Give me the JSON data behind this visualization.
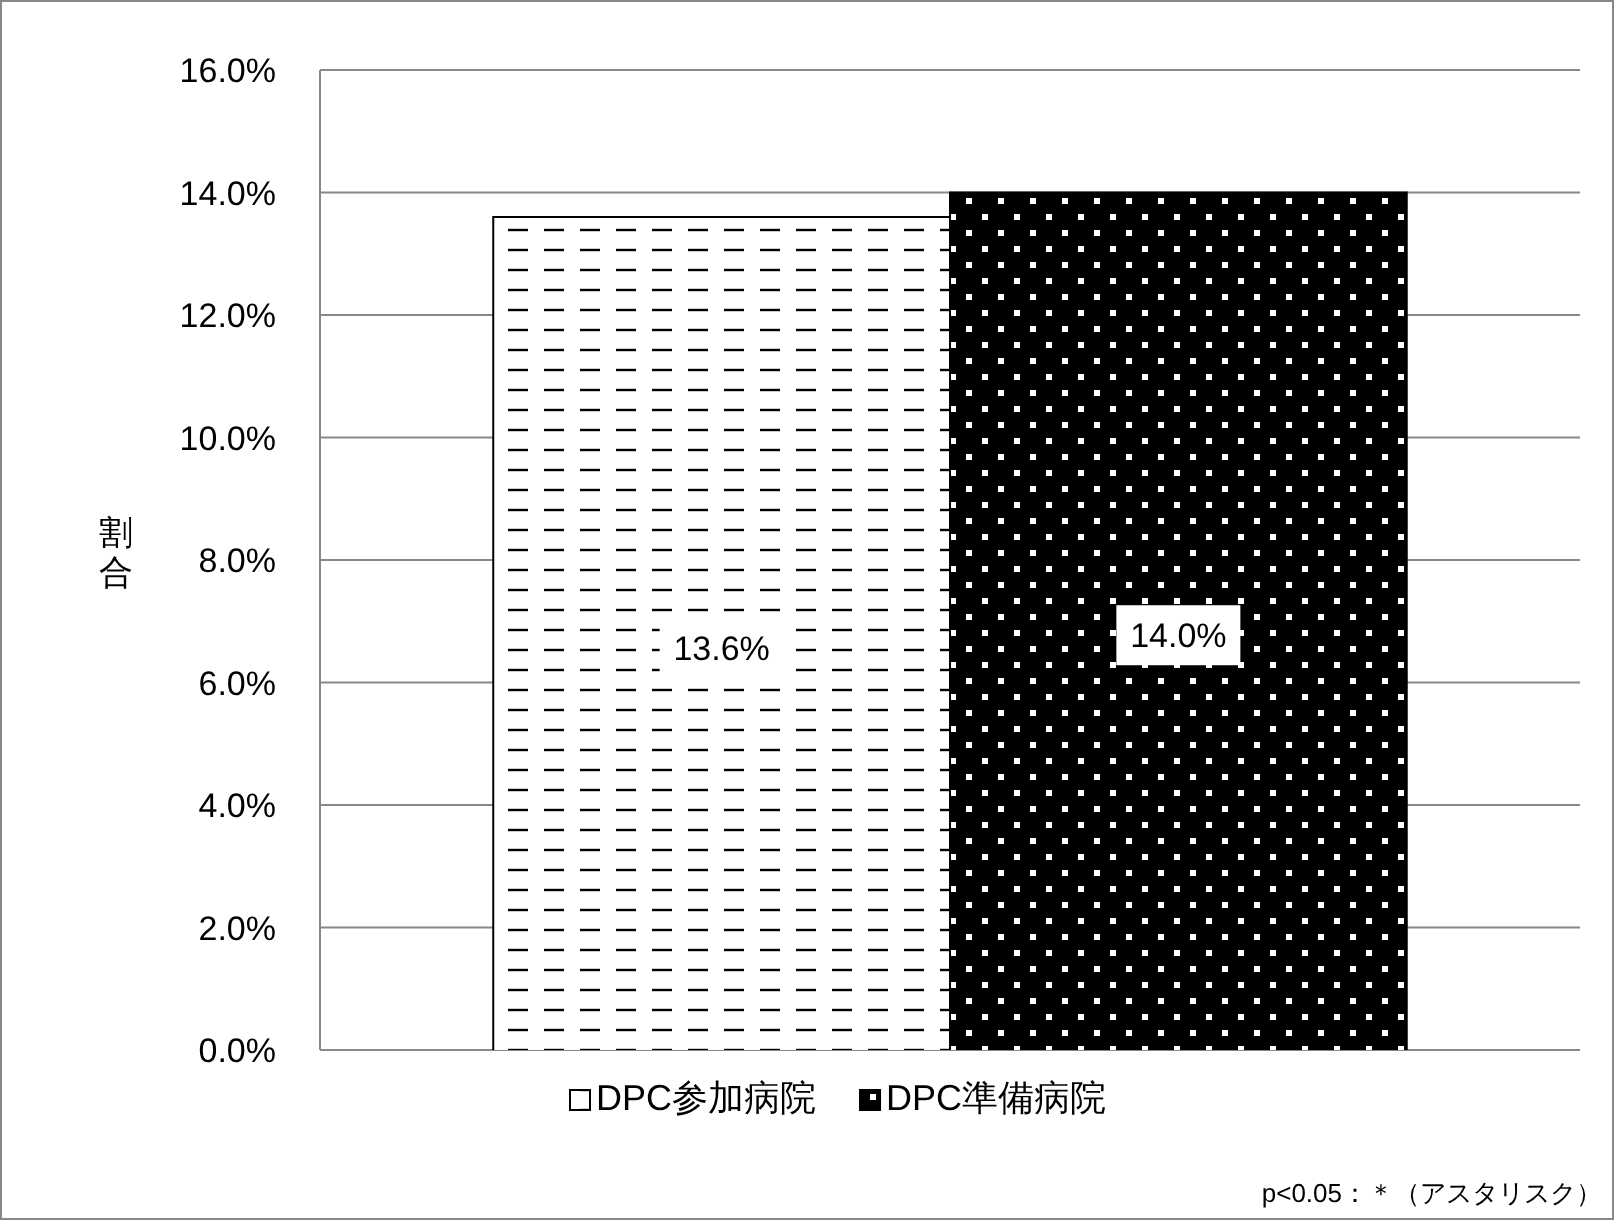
{
  "chart_data": {
    "type": "bar",
    "ylabel": "割合",
    "categories": [
      null
    ],
    "series": [
      {
        "name": "DPC参加病院",
        "color": "#ffffff",
        "values": [
          13.6
        ],
        "value_labels": [
          "13.6%"
        ]
      },
      {
        "name": "DPC準備病院",
        "color": "#000000",
        "values": [
          14.0
        ],
        "value_labels": [
          "14.0%"
        ]
      }
    ],
    "ylim": [
      0,
      16
    ],
    "yticks": [
      {
        "value": 0,
        "label": "0.0%"
      },
      {
        "value": 2,
        "label": "2.0%"
      },
      {
        "value": 4,
        "label": "4.0%"
      },
      {
        "value": 6,
        "label": "6.0%"
      },
      {
        "value": 8,
        "label": "8.0%"
      },
      {
        "value": 10,
        "label": "10.0%"
      },
      {
        "value": 12,
        "label": "12.0%"
      },
      {
        "value": 14,
        "label": "14.0%"
      },
      {
        "value": 16,
        "label": "16.0%"
      }
    ],
    "grid": "y",
    "legend": "bottom",
    "annotations": [
      "p<0.05：＊（アスタリスク）"
    ]
  }
}
